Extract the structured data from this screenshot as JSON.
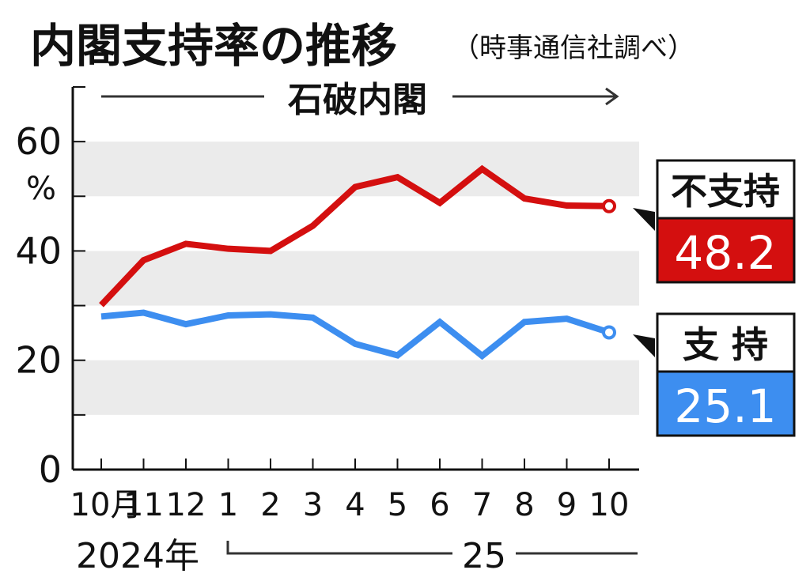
{
  "title": "内閣支持率の推移",
  "subtitle": "（時事通信社調べ）",
  "period_label": "石破内閣",
  "chart_data": {
    "type": "line",
    "title": "内閣支持率の推移",
    "subtitle": "（時事通信社調べ）",
    "ylabel": "%",
    "ylim": [
      0,
      70
    ],
    "y_ticks": [
      "0",
      "20",
      "40",
      "60"
    ],
    "grid": "alternating-bands",
    "categories": [
      "10月",
      "11",
      "12",
      "1",
      "2",
      "3",
      "4",
      "5",
      "6",
      "7",
      "8",
      "9",
      "10"
    ],
    "year_labels": [
      "2024年",
      "25"
    ],
    "series": [
      {
        "name": "不支持",
        "color": "#d40f0f",
        "latest_label": "48.2",
        "values": [
          30.1,
          38.3,
          41.3,
          40.4,
          40.0,
          44.6,
          51.7,
          53.5,
          48.8,
          55.0,
          49.6,
          48.3,
          48.2
        ]
      },
      {
        "name": "支 持",
        "color": "#3d8ef0",
        "latest_label": "25.1",
        "values": [
          28.0,
          28.7,
          26.6,
          28.2,
          28.4,
          27.8,
          23.0,
          20.9,
          27.0,
          20.8,
          27.0,
          27.6,
          25.1
        ]
      }
    ]
  }
}
